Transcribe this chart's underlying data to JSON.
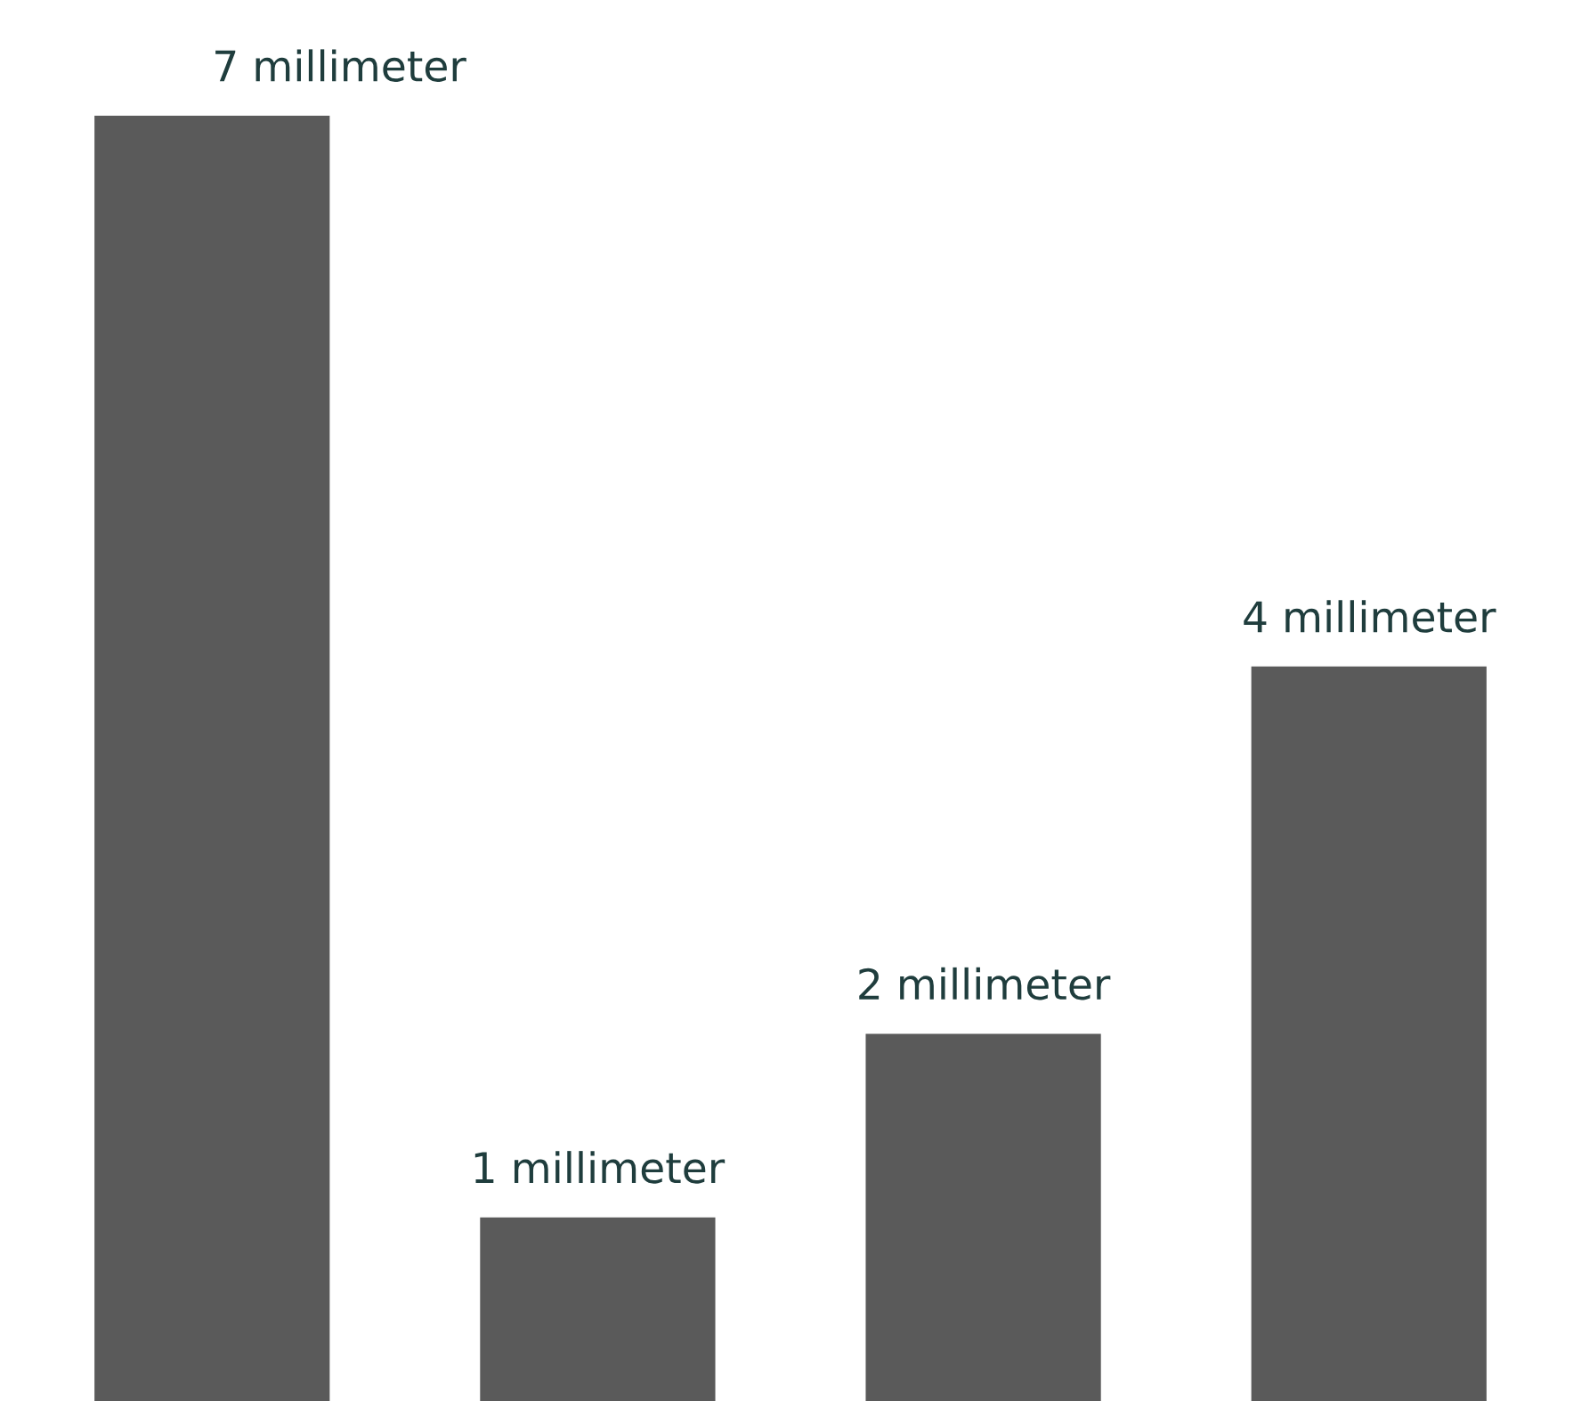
{
  "chart_data": {
    "type": "bar",
    "categories": [
      null,
      null,
      null,
      null
    ],
    "values": [
      7,
      1,
      2,
      4
    ],
    "color": "#5a5a5a",
    "value_labels": [
      "7 millimeter",
      "1 millimeter",
      "2 millimeter",
      "4 millimeter"
    ],
    "legend": false
  }
}
